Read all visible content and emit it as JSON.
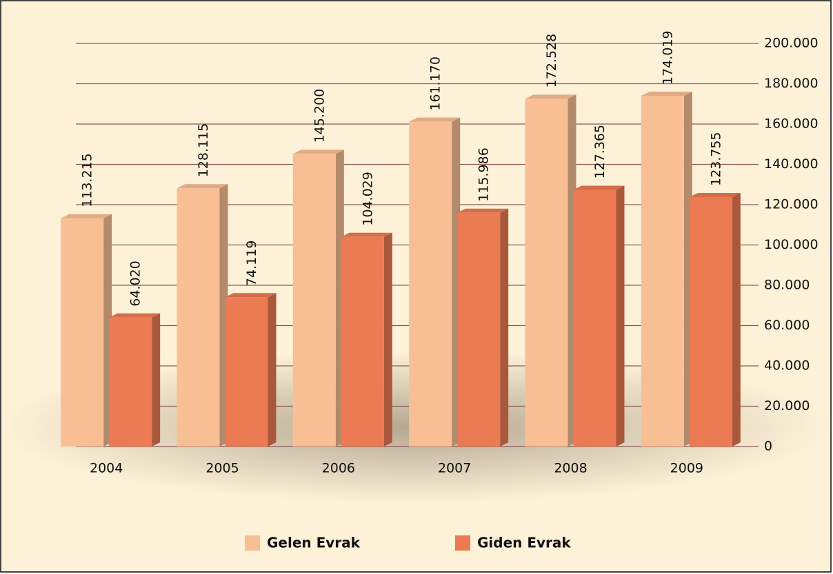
{
  "chart_data": {
    "type": "bar",
    "categories": [
      "2004",
      "2005",
      "2006",
      "2007",
      "2008",
      "2009"
    ],
    "series": [
      {
        "name": "Gelen Evrak",
        "color": "#f9bf94",
        "values": [
          113215,
          128115,
          145200,
          161170,
          172528,
          174019
        ],
        "value_labels": [
          "113.215",
          "128.115",
          "145.200",
          "161.170",
          "172.528",
          "174.019"
        ]
      },
      {
        "name": "Giden Evrak",
        "color": "#ec7a52",
        "values": [
          64020,
          74119,
          104029,
          115986,
          127365,
          123755
        ],
        "value_labels": [
          "64.020",
          "74.119",
          "104.029",
          "115.986",
          "127.365",
          "123.755"
        ]
      }
    ],
    "ylim": [
      0,
      200000
    ],
    "yticks": [
      0,
      {
        "value": 20000,
        "label": "20.000"
      },
      {
        "value": 40000,
        "label": "40.000"
      },
      {
        "value": 60000,
        "label": "60.000"
      },
      {
        "value": 80000,
        "label": "80.000"
      },
      {
        "value": 100000,
        "label": "100.000"
      },
      {
        "value": 120000,
        "label": "120.000"
      },
      {
        "value": 140000,
        "label": "140.000"
      },
      {
        "value": 160000,
        "label": "160.000"
      },
      {
        "value": 180000,
        "label": "180.000"
      },
      {
        "value": 200000,
        "label": "200.000"
      }
    ],
    "grid": true,
    "legend": "bottom"
  }
}
